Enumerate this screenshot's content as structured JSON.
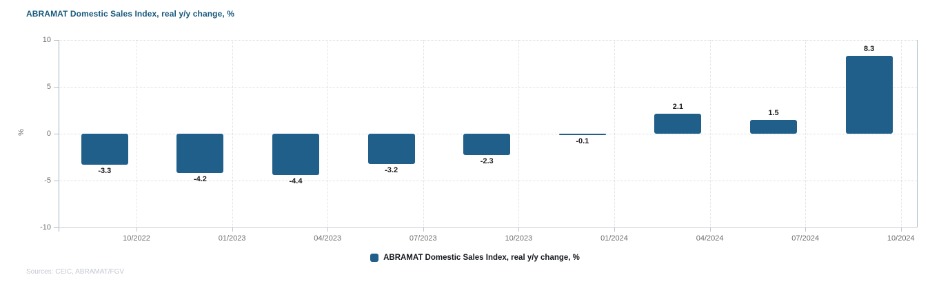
{
  "header": {
    "title": "ABRAMAT Domestic Sales Index, real y/y change, %"
  },
  "chart_data": {
    "type": "bar",
    "title": "ABRAMAT Domestic Sales Index, real y/y change, %",
    "series": [
      {
        "name": "ABRAMAT Domestic Sales Index, real y/y change, %",
        "values": [
          -3.3,
          -4.2,
          -4.4,
          -3.2,
          -2.3,
          -0.1,
          2.1,
          1.5,
          8.3
        ]
      }
    ],
    "data_labels": [
      "-3.3",
      "-4.2",
      "-4.4",
      "-3.2",
      "-2.3",
      "-0.1",
      "2.1",
      "1.5",
      "8.3"
    ],
    "x_tick_labels": [
      "10/2022",
      "01/2023",
      "04/2023",
      "07/2023",
      "10/2023",
      "01/2024",
      "04/2024",
      "07/2024",
      "10/2024"
    ],
    "y_ticks": [
      10,
      5,
      0,
      -5,
      -10
    ],
    "ylim": [
      -10,
      10
    ],
    "ylabel": "%",
    "grid": true,
    "legend_position": "bottom",
    "bar_color": "#1F5F8A"
  },
  "legend": {
    "label": "ABRAMAT Domestic Sales Index, real y/y change, %"
  },
  "footer": {
    "sources": "Sources: CEIC, ABRAMAT/FGV"
  }
}
